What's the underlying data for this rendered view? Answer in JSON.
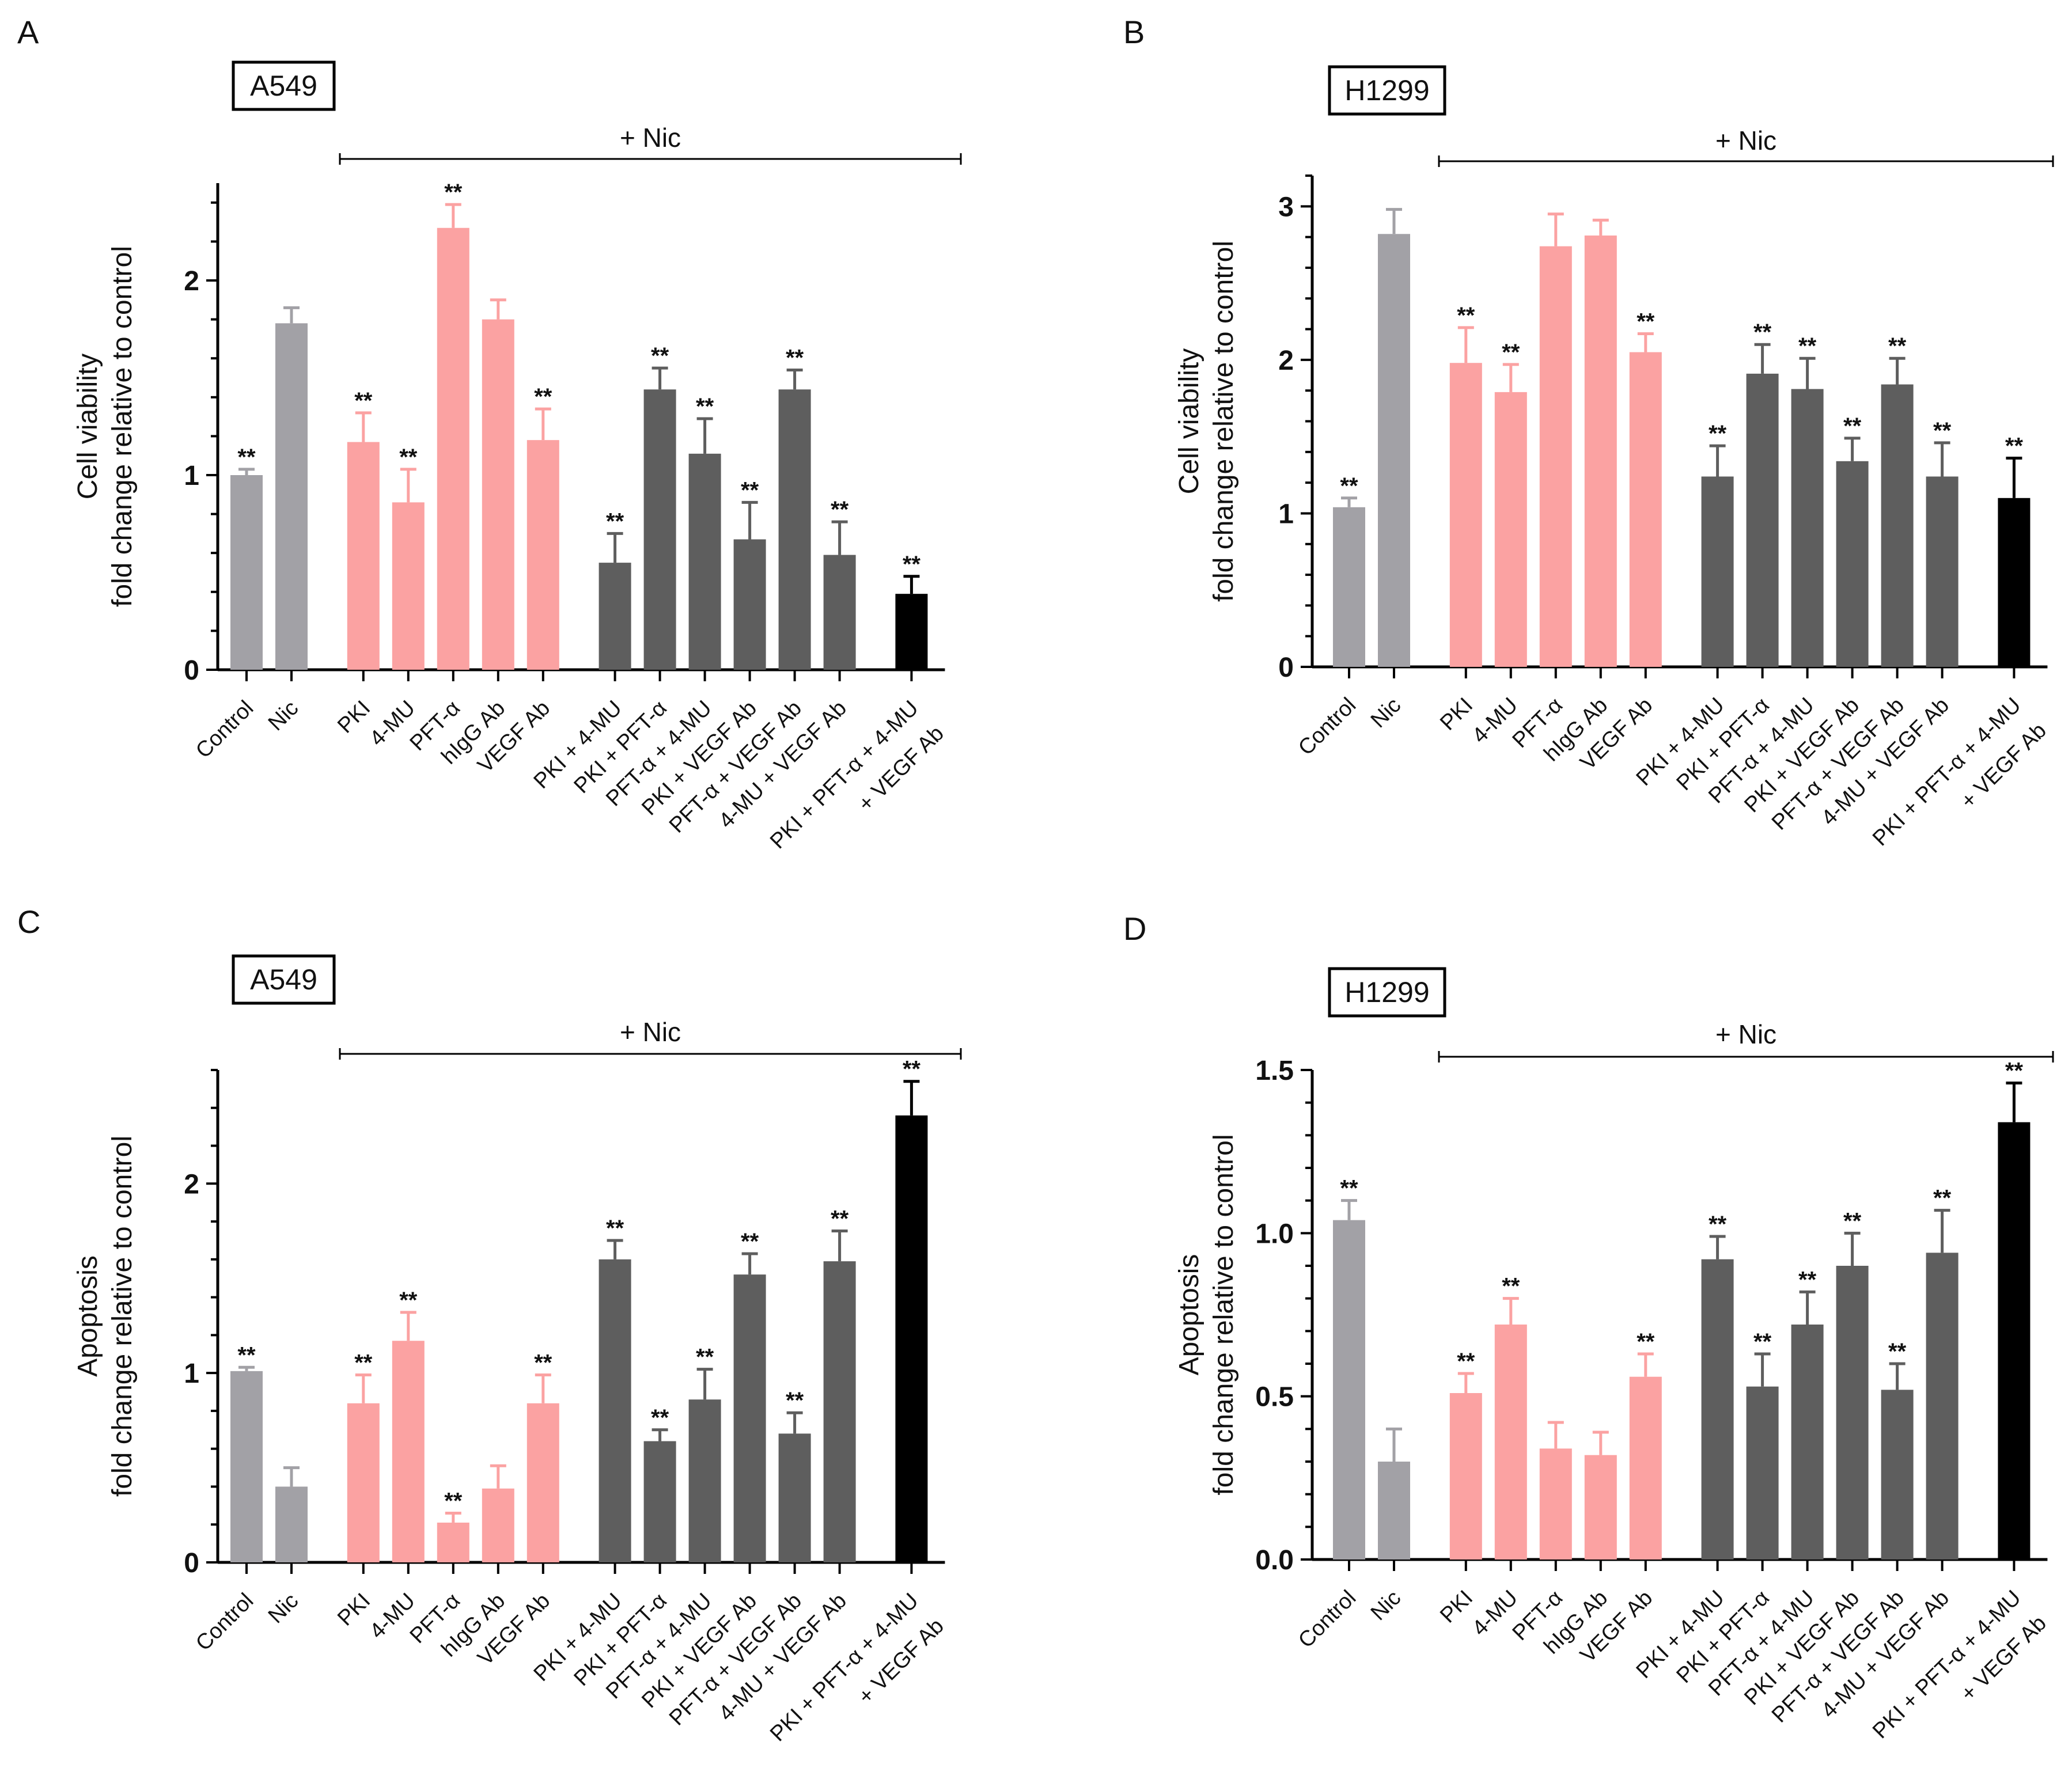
{
  "colors": {
    "gray": "#A2A1A6",
    "pink": "#FBA2A2",
    "dark": "#5E5E5E",
    "black": "#000000"
  },
  "chart_data": [
    {
      "type": "bar",
      "panel_label": "A",
      "cell_line": "A549",
      "treatment_label": "+ Nic",
      "ylabel_line1": "Cell viability",
      "ylabel_line2": "fold change relative to control",
      "ylim": [
        0,
        2.5
      ],
      "yticks": [
        0,
        1,
        2
      ],
      "ytick_labels": [
        "0",
        "1",
        "2"
      ],
      "significance_mark": "**",
      "categories": [
        {
          "label": "Control",
          "value": 1.0,
          "error": 0.03,
          "color": "gray",
          "sig": true
        },
        {
          "label": "Nic",
          "value": 1.78,
          "error": 0.08,
          "color": "gray",
          "sig": false
        },
        {
          "label": "PKI",
          "value": 1.17,
          "error": 0.15,
          "color": "pink",
          "sig": true
        },
        {
          "label": "4-MU",
          "value": 0.86,
          "error": 0.17,
          "color": "pink",
          "sig": true
        },
        {
          "label": "PFT-α",
          "value": 2.27,
          "error": 0.12,
          "color": "pink",
          "sig": true
        },
        {
          "label": "hIgG Ab",
          "value": 1.8,
          "error": 0.1,
          "color": "pink",
          "sig": false
        },
        {
          "label": "VEGF Ab",
          "value": 1.18,
          "error": 0.16,
          "color": "pink",
          "sig": true
        },
        {
          "label": "PKI + 4-MU",
          "value": 0.55,
          "error": 0.15,
          "color": "dark",
          "sig": true
        },
        {
          "label": "PKI + PFT-α",
          "value": 1.44,
          "error": 0.11,
          "color": "dark",
          "sig": true
        },
        {
          "label": "PFT-α + 4-MU",
          "value": 1.11,
          "error": 0.18,
          "color": "dark",
          "sig": true
        },
        {
          "label": "PKI + VEGF Ab",
          "value": 0.67,
          "error": 0.19,
          "color": "dark",
          "sig": true
        },
        {
          "label": "PFT-α + VEGF Ab",
          "value": 1.44,
          "error": 0.1,
          "color": "dark",
          "sig": true
        },
        {
          "label": "4-MU + VEGF Ab",
          "value": 0.59,
          "error": 0.17,
          "color": "dark",
          "sig": true
        },
        {
          "label": "PKI + PFT-α + 4-MU",
          "label2": "+ VEGF Ab",
          "value": 0.39,
          "error": 0.09,
          "color": "black",
          "sig": true
        }
      ]
    },
    {
      "type": "bar",
      "panel_label": "B",
      "cell_line": "H1299",
      "treatment_label": "+ Nic",
      "ylabel_line1": "Cell viability",
      "ylabel_line2": "fold change relative to control",
      "ylim": [
        0,
        3.2
      ],
      "yticks": [
        0,
        1,
        2,
        3
      ],
      "ytick_labels": [
        "0",
        "1",
        "2",
        "3"
      ],
      "significance_mark": "**",
      "categories": [
        {
          "label": "Control",
          "value": 1.04,
          "error": 0.06,
          "color": "gray",
          "sig": true
        },
        {
          "label": "Nic",
          "value": 2.82,
          "error": 0.16,
          "color": "gray",
          "sig": false
        },
        {
          "label": "PKI",
          "value": 1.98,
          "error": 0.23,
          "color": "pink",
          "sig": true
        },
        {
          "label": "4-MU",
          "value": 1.79,
          "error": 0.18,
          "color": "pink",
          "sig": true
        },
        {
          "label": "PFT-α",
          "value": 2.74,
          "error": 0.21,
          "color": "pink",
          "sig": false
        },
        {
          "label": "hIgG Ab",
          "value": 2.81,
          "error": 0.1,
          "color": "pink",
          "sig": false
        },
        {
          "label": "VEGF Ab",
          "value": 2.05,
          "error": 0.12,
          "color": "pink",
          "sig": true
        },
        {
          "label": "PKI + 4-MU",
          "value": 1.24,
          "error": 0.2,
          "color": "dark",
          "sig": true
        },
        {
          "label": "PKI + PFT-α",
          "value": 1.91,
          "error": 0.19,
          "color": "dark",
          "sig": true
        },
        {
          "label": "PFT-α + 4-MU",
          "value": 1.81,
          "error": 0.2,
          "color": "dark",
          "sig": true
        },
        {
          "label": "PKI + VEGF Ab",
          "value": 1.34,
          "error": 0.15,
          "color": "dark",
          "sig": true
        },
        {
          "label": "PFT-α + VEGF Ab",
          "value": 1.84,
          "error": 0.17,
          "color": "dark",
          "sig": true
        },
        {
          "label": "4-MU + VEGF Ab",
          "value": 1.24,
          "error": 0.22,
          "color": "dark",
          "sig": true
        },
        {
          "label": "PKI + PFT-α + 4-MU",
          "label2": "+ VEGF Ab",
          "value": 1.1,
          "error": 0.26,
          "color": "black",
          "sig": true
        }
      ]
    },
    {
      "type": "bar",
      "panel_label": "C",
      "cell_line": "A549",
      "treatment_label": "+ Nic",
      "ylabel_line1": "Apoptosis",
      "ylabel_line2": "fold change relative to control",
      "ylim": [
        0,
        2.6
      ],
      "yticks": [
        0,
        1,
        2
      ],
      "ytick_labels": [
        "0",
        "1",
        "2"
      ],
      "significance_mark": "**",
      "categories": [
        {
          "label": "Control",
          "value": 1.01,
          "error": 0.02,
          "color": "gray",
          "sig": true
        },
        {
          "label": "Nic",
          "value": 0.4,
          "error": 0.1,
          "color": "gray",
          "sig": false
        },
        {
          "label": "PKI",
          "value": 0.84,
          "error": 0.15,
          "color": "pink",
          "sig": true
        },
        {
          "label": "4-MU",
          "value": 1.17,
          "error": 0.15,
          "color": "pink",
          "sig": true
        },
        {
          "label": "PFT-α",
          "value": 0.21,
          "error": 0.05,
          "color": "pink",
          "sig": true
        },
        {
          "label": "hIgG Ab",
          "value": 0.39,
          "error": 0.12,
          "color": "pink",
          "sig": false
        },
        {
          "label": "VEGF Ab",
          "value": 0.84,
          "error": 0.15,
          "color": "pink",
          "sig": true
        },
        {
          "label": "PKI + 4-MU",
          "value": 1.6,
          "error": 0.1,
          "color": "dark",
          "sig": true
        },
        {
          "label": "PKI + PFT-α",
          "value": 0.64,
          "error": 0.06,
          "color": "dark",
          "sig": true
        },
        {
          "label": "PFT-α + 4-MU",
          "value": 0.86,
          "error": 0.16,
          "color": "dark",
          "sig": true
        },
        {
          "label": "PKI + VEGF Ab",
          "value": 1.52,
          "error": 0.11,
          "color": "dark",
          "sig": true
        },
        {
          "label": "PFT-α + VEGF Ab",
          "value": 0.68,
          "error": 0.11,
          "color": "dark",
          "sig": true
        },
        {
          "label": "4-MU + VEGF Ab",
          "value": 1.59,
          "error": 0.16,
          "color": "dark",
          "sig": true
        },
        {
          "label": "PKI + PFT-α + 4-MU",
          "label2": "+ VEGF Ab",
          "value": 2.36,
          "error": 0.18,
          "color": "black",
          "sig": true
        }
      ]
    },
    {
      "type": "bar",
      "panel_label": "D",
      "cell_line": "H1299",
      "treatment_label": "+ Nic",
      "ylabel_line1": "Apoptosis",
      "ylabel_line2": "fold change relative to control",
      "ylim": [
        0,
        1.5
      ],
      "yticks": [
        0,
        0.5,
        1,
        1.5
      ],
      "ytick_labels": [
        "0.0",
        "0.5",
        "1.0",
        "1.5"
      ],
      "significance_mark": "**",
      "categories": [
        {
          "label": "Control",
          "value": 1.04,
          "error": 0.06,
          "color": "gray",
          "sig": true
        },
        {
          "label": "Nic",
          "value": 0.3,
          "error": 0.1,
          "color": "gray",
          "sig": false
        },
        {
          "label": "PKI",
          "value": 0.51,
          "error": 0.06,
          "color": "pink",
          "sig": true
        },
        {
          "label": "4-MU",
          "value": 0.72,
          "error": 0.08,
          "color": "pink",
          "sig": true
        },
        {
          "label": "PFT-α",
          "value": 0.34,
          "error": 0.08,
          "color": "pink",
          "sig": false
        },
        {
          "label": "hIgG Ab",
          "value": 0.32,
          "error": 0.07,
          "color": "pink",
          "sig": false
        },
        {
          "label": "VEGF Ab",
          "value": 0.56,
          "error": 0.07,
          "color": "pink",
          "sig": true
        },
        {
          "label": "PKI + 4-MU",
          "value": 0.92,
          "error": 0.07,
          "color": "dark",
          "sig": true
        },
        {
          "label": "PKI + PFT-α",
          "value": 0.53,
          "error": 0.1,
          "color": "dark",
          "sig": true
        },
        {
          "label": "PFT-α + 4-MU",
          "value": 0.72,
          "error": 0.1,
          "color": "dark",
          "sig": true
        },
        {
          "label": "PKI + VEGF Ab",
          "value": 0.9,
          "error": 0.1,
          "color": "dark",
          "sig": true
        },
        {
          "label": "PFT-α + VEGF Ab",
          "value": 0.52,
          "error": 0.08,
          "color": "dark",
          "sig": true
        },
        {
          "label": "4-MU + VEGF Ab",
          "value": 0.94,
          "error": 0.13,
          "color": "dark",
          "sig": true
        },
        {
          "label": "PKI + PFT-α + 4-MU",
          "label2": "+ VEGF Ab",
          "value": 1.34,
          "error": 0.12,
          "color": "black",
          "sig": true
        }
      ]
    }
  ]
}
